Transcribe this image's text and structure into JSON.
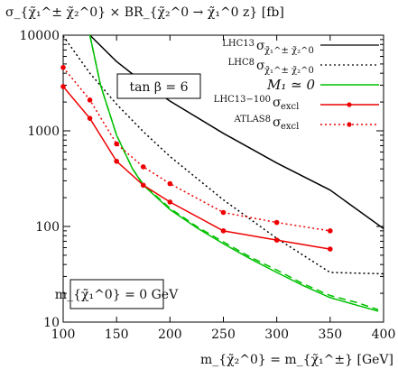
{
  "chart_data": {
    "type": "line",
    "title": "",
    "ylabel": "σ_{χ̃₁^± χ̃₂^0} × BR_{χ̃₂^0 → χ̃₁^0 z} [fb]",
    "xlabel": "m_{χ̃₂^0} = m_{χ̃₁^±} [GeV]",
    "yscale": "log",
    "xlim": [
      100,
      400
    ],
    "ylim": [
      10,
      10000
    ],
    "xticks": [
      "100",
      "150",
      "200",
      "250",
      "300",
      "350",
      "400"
    ],
    "yticks": [
      "10",
      "100",
      "1000",
      "10000"
    ],
    "grid": false,
    "legend_position": "top-right",
    "annotations": {
      "tanbeta": "tan β = 6",
      "m1": "m_{χ̃₁^0} = 0 GeV"
    },
    "legend": {
      "lhc13_prefix": "LHC13",
      "lhc13_main": "σ",
      "lhc13_sub": "χ̃₁^± χ̃₂^0",
      "lhc8_prefix": "LHC8",
      "lhc8_main": "σ",
      "lhc8_sub": "χ̃₁^± χ̃₂^0",
      "m1": "M₁ ≃ 0",
      "lhc13100_prefix": "LHC13−100",
      "lhc13100_main": "σ",
      "lhc13100_sub": "excl",
      "atlas8_prefix": "ATLAS8",
      "atlas8_main": "σ",
      "atlas8_sub": "excl"
    },
    "series": [
      {
        "key": "lhc13",
        "x": [
          125,
          150,
          175,
          200,
          250,
          300,
          350,
          400
        ],
        "y": [
          10000,
          5300,
          3200,
          2050,
          940,
          460,
          240,
          95
        ],
        "color": "#000000",
        "dash": "",
        "markers": false
      },
      {
        "key": "lhc8",
        "x": [
          100,
          125,
          150,
          175,
          200,
          250,
          300,
          350,
          400
        ],
        "y": [
          9800,
          4000,
          1900,
          980,
          540,
          190,
          75,
          33,
          32
        ],
        "color": "#000000",
        "dash": "2,3",
        "markers": false
      },
      {
        "key": "m1_solid",
        "x": [
          125,
          135,
          150,
          165,
          175,
          200,
          225,
          250,
          275,
          300,
          325,
          350,
          375,
          395
        ],
        "y": [
          10000,
          3000,
          900,
          400,
          270,
          150,
          97,
          66,
          46,
          33,
          24,
          18,
          15,
          13
        ],
        "color": "#00c000",
        "dash": "",
        "markers": false
      },
      {
        "key": "m1_dashed",
        "x": [
          125,
          135,
          150,
          165,
          175,
          200,
          225,
          250,
          275,
          300,
          325,
          350,
          375,
          395
        ],
        "y": [
          10000,
          3000,
          900,
          400,
          275,
          155,
          100,
          69,
          48,
          35,
          25,
          19,
          16,
          13.5
        ],
        "color": "#00c000",
        "dash": "8,5",
        "markers": false
      },
      {
        "key": "lhc13100",
        "x": [
          100,
          125,
          150,
          175,
          200,
          250,
          300,
          350
        ],
        "y": [
          2900,
          1350,
          480,
          270,
          180,
          90,
          72,
          58
        ],
        "color": "#ee0000",
        "dash": "",
        "markers": true
      },
      {
        "key": "atlas8",
        "x": [
          100,
          125,
          150,
          175,
          200,
          250,
          300,
          350
        ],
        "y": [
          4600,
          2100,
          730,
          420,
          280,
          140,
          110,
          90
        ],
        "color": "#ee0000",
        "dash": "2,3",
        "markers": true
      }
    ]
  }
}
